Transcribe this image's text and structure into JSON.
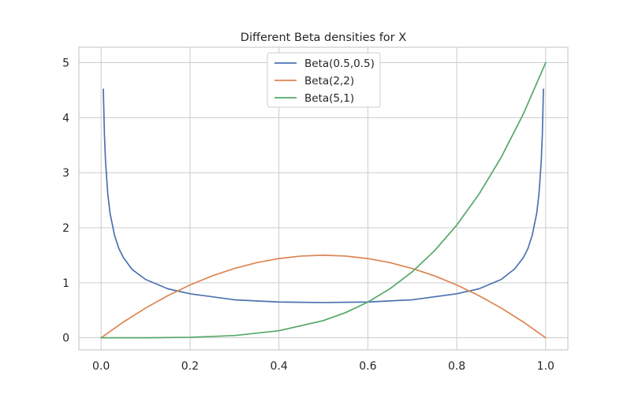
{
  "chart_data": {
    "type": "line",
    "title": "Different Beta densities for X",
    "xlabel": "",
    "ylabel": "",
    "xlim": [
      -0.05,
      1.05
    ],
    "ylim": [
      -0.22,
      5.28
    ],
    "x_ticks": [
      "0.0",
      "0.2",
      "0.4",
      "0.6",
      "0.8",
      "1.0"
    ],
    "y_ticks": [
      "0",
      "1",
      "2",
      "3",
      "4",
      "5"
    ],
    "grid": true,
    "legend_position": "top-center",
    "series": [
      {
        "name": "Beta(0.5,0.5)",
        "color": "#4c72b0",
        "x": [
          0.005,
          0.0075,
          0.01,
          0.015,
          0.02,
          0.03,
          0.04,
          0.05,
          0.07,
          0.1,
          0.15,
          0.2,
          0.3,
          0.4,
          0.5,
          0.6,
          0.7,
          0.8,
          0.85,
          0.9,
          0.93,
          0.95,
          0.96,
          0.97,
          0.98,
          0.985,
          0.99,
          0.9925,
          0.995
        ],
        "y": [
          4.52,
          3.69,
          3.2,
          2.62,
          2.27,
          1.87,
          1.62,
          1.46,
          1.24,
          1.06,
          0.89,
          0.8,
          0.69,
          0.65,
          0.64,
          0.65,
          0.69,
          0.8,
          0.89,
          1.06,
          1.25,
          1.46,
          1.62,
          1.87,
          2.27,
          2.62,
          3.2,
          3.69,
          4.52
        ]
      },
      {
        "name": "Beta(2,2)",
        "color": "#dd8452",
        "x": [
          0.0,
          0.05,
          0.1,
          0.15,
          0.2,
          0.25,
          0.3,
          0.35,
          0.4,
          0.45,
          0.5,
          0.55,
          0.6,
          0.65,
          0.7,
          0.75,
          0.8,
          0.85,
          0.9,
          0.95,
          1.0
        ],
        "y": [
          0.0,
          0.285,
          0.54,
          0.765,
          0.96,
          1.125,
          1.26,
          1.365,
          1.44,
          1.485,
          1.5,
          1.485,
          1.44,
          1.365,
          1.26,
          1.125,
          0.96,
          0.765,
          0.54,
          0.285,
          0.0
        ]
      },
      {
        "name": "Beta(5,1)",
        "color": "#55a868",
        "x": [
          0.0,
          0.1,
          0.2,
          0.3,
          0.4,
          0.5,
          0.55,
          0.6,
          0.65,
          0.7,
          0.75,
          0.8,
          0.85,
          0.9,
          0.95,
          1.0
        ],
        "y": [
          0.0,
          0.0005,
          0.008,
          0.0405,
          0.128,
          0.3125,
          0.4575,
          0.648,
          0.8925,
          1.2005,
          1.582,
          2.048,
          2.61,
          3.2805,
          4.0725,
          5.0
        ]
      }
    ]
  }
}
